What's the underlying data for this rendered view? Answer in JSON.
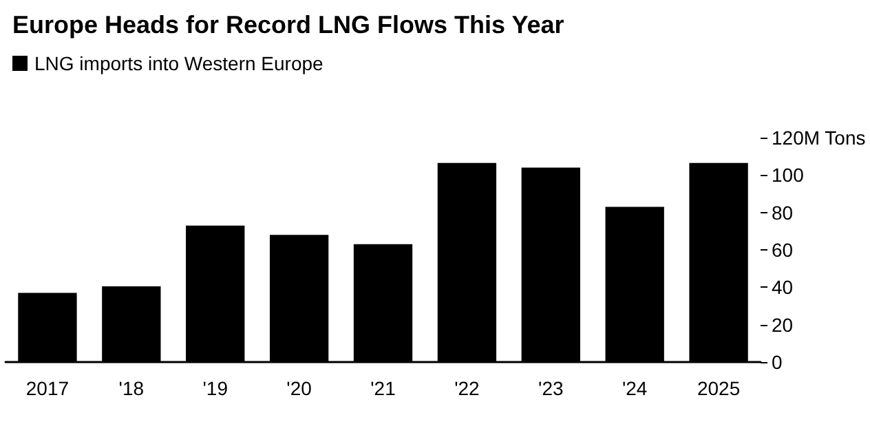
{
  "chart_data": {
    "type": "bar",
    "title": "Europe Heads for Record LNG Flows This Year",
    "categories": [
      "2017",
      "'18",
      "'19",
      "'20",
      "'21",
      "'22",
      "'23",
      "'24",
      "2025"
    ],
    "series": [
      {
        "name": "LNG imports into Western Europe",
        "color": "#000000",
        "values": [
          37,
          40.5,
          73,
          68,
          63,
          106.5,
          104,
          83,
          106.5
        ]
      }
    ],
    "ylim": [
      0,
      120
    ],
    "yticks": [
      0,
      20,
      40,
      60,
      80,
      100,
      {
        "value": 120,
        "label": "120M Tons"
      }
    ],
    "legend": "top left",
    "grid": false
  }
}
